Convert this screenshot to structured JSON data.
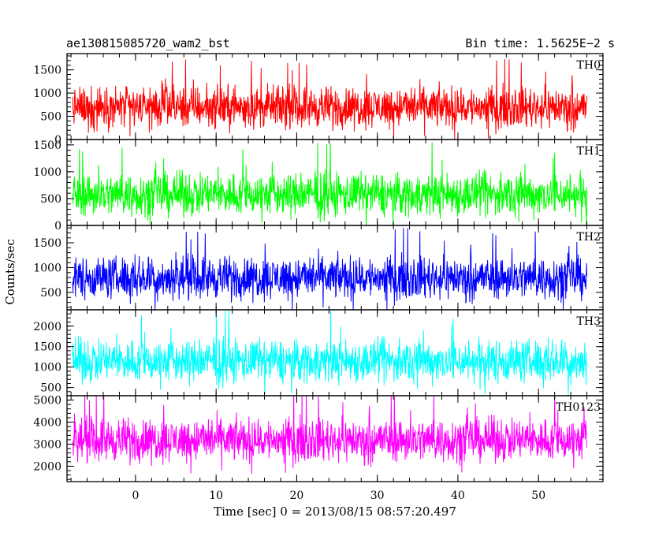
{
  "header": {
    "title": "ae130815085720_wam2_bst",
    "bin_time": "Bin time: 1.5625E−2 s"
  },
  "chart_data": {
    "type": "line",
    "xlabel": "Time [sec] 0 = 2013/08/15 08:57:20.497",
    "ylabel": "Counts/sec",
    "xlim": [
      -8.5,
      58
    ],
    "x_ticks": [
      0,
      10,
      20,
      30,
      40,
      50
    ],
    "x_tick_labels": [
      "0",
      "10",
      "20",
      "30",
      "40",
      "50"
    ],
    "x_data_range": [
      -7.8,
      56.0
    ],
    "bin_time_s": 0.015625,
    "grid": false,
    "series": [
      {
        "name": "TH0",
        "color": "#ff0000",
        "ylim": [
          0,
          1850
        ],
        "y_ticks": [
          0,
          500,
          1000,
          1500
        ],
        "y_tick_labels": [
          "0",
          "500",
          "1000",
          "1500"
        ],
        "approx_mean": 700,
        "approx_low": 150,
        "approx_high": 1850
      },
      {
        "name": "TH1",
        "color": "#00ff00",
        "ylim": [
          0,
          1600
        ],
        "y_ticks": [
          0,
          500,
          1000,
          1500
        ],
        "y_tick_labels": [
          "0",
          "500",
          "1000",
          "1500"
        ],
        "approx_mean": 580,
        "approx_low": 50,
        "approx_high": 1600
      },
      {
        "name": "TH2",
        "color": "#0000ff",
        "ylim": [
          150,
          1850
        ],
        "y_ticks": [
          500,
          1000,
          1500
        ],
        "y_tick_labels": [
          "500",
          "1000",
          "1500"
        ],
        "approx_mean": 800,
        "approx_low": 200,
        "approx_high": 1850
      },
      {
        "name": "TH3",
        "color": "#00ffff",
        "ylim": [
          300,
          2400
        ],
        "y_ticks": [
          500,
          1000,
          1500,
          2000
        ],
        "y_tick_labels": [
          "500",
          "1000",
          "1500",
          "2000"
        ],
        "approx_mean": 1150,
        "approx_low": 350,
        "approx_high": 2400
      },
      {
        "name": "TH0123",
        "color": "#ff00ff",
        "ylim": [
          1300,
          5200
        ],
        "y_ticks": [
          2000,
          3000,
          4000,
          5000
        ],
        "y_tick_labels": [
          "2000",
          "3000",
          "4000",
          "5000"
        ],
        "approx_mean": 3200,
        "approx_low": 1400,
        "approx_high": 5200
      }
    ]
  }
}
